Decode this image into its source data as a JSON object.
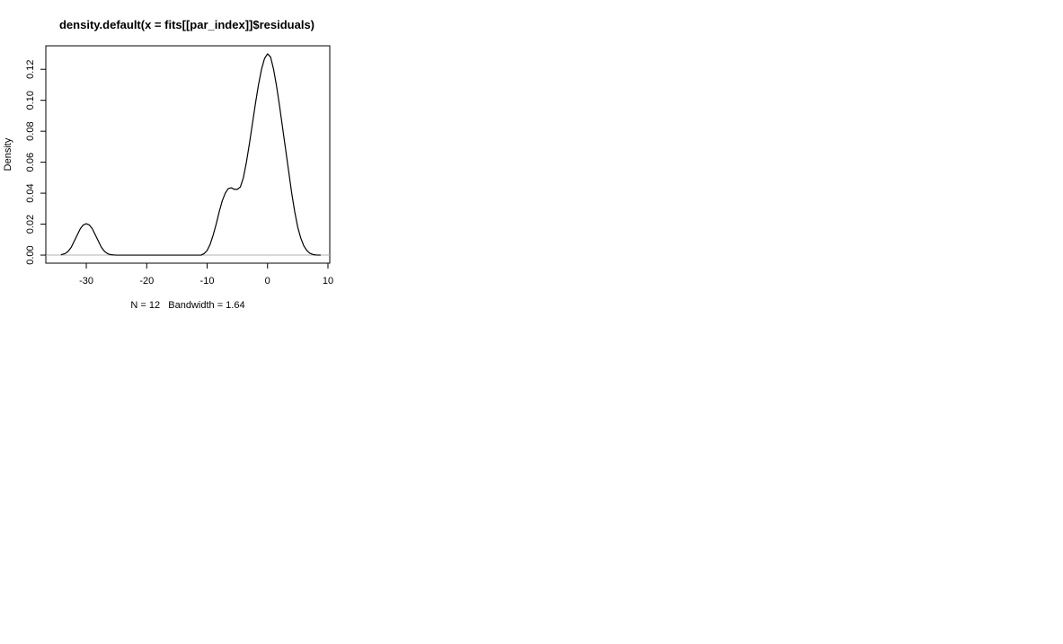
{
  "chart_data": {
    "type": "line",
    "title": "density.default(x = fits[[par_index]]$residuals)",
    "xlabel": "N = 12   Bandwidth = 1.64",
    "ylabel": "Density",
    "xlim": [
      -36.7,
      10.3
    ],
    "ylim": [
      -0.0052,
      0.1352
    ],
    "x_ticks": [
      -30,
      -20,
      -10,
      0,
      10
    ],
    "x_tick_labels": [
      "-30",
      "-20",
      "-10",
      "0",
      "10"
    ],
    "y_ticks": [
      0.0,
      0.02,
      0.04,
      0.06,
      0.08,
      0.1,
      0.12
    ],
    "y_tick_labels": [
      "0.00",
      "0.02",
      "0.04",
      "0.06",
      "0.08",
      "0.10",
      "0.12"
    ],
    "zero_line": true,
    "grid": false,
    "series": [
      {
        "x": [
          -34.2,
          -33.5,
          -33,
          -32.5,
          -32,
          -31.5,
          -31,
          -30.5,
          -30,
          -29.5,
          -29,
          -28.5,
          -28,
          -27.5,
          -27,
          -26.5,
          -26,
          -25.5,
          -25,
          -24,
          -20,
          -15,
          -11,
          -10.5,
          -10,
          -9.5,
          -9,
          -8.5,
          -8,
          -7.5,
          -7,
          -6.5,
          -6,
          -5.5,
          -5,
          -4.5,
          -4,
          -3.5,
          -3,
          -2.5,
          -2,
          -1.5,
          -1,
          -0.5,
          0,
          0.5,
          1,
          1.5,
          2,
          2.5,
          3,
          3.5,
          4,
          4.5,
          5,
          5.5,
          6,
          6.5,
          7,
          7.5,
          8,
          8.8
        ],
        "y": [
          0.0002,
          0.001,
          0.0025,
          0.005,
          0.009,
          0.013,
          0.017,
          0.0195,
          0.0203,
          0.0195,
          0.017,
          0.013,
          0.009,
          0.005,
          0.0025,
          0.001,
          0.0003,
          0.0001,
          0,
          0,
          0,
          0,
          0,
          0.001,
          0.003,
          0.007,
          0.013,
          0.02,
          0.028,
          0.035,
          0.04,
          0.043,
          0.0435,
          0.0425,
          0.0425,
          0.044,
          0.05,
          0.06,
          0.072,
          0.085,
          0.098,
          0.11,
          0.12,
          0.127,
          0.13,
          0.128,
          0.12,
          0.109,
          0.096,
          0.082,
          0.068,
          0.054,
          0.04,
          0.028,
          0.018,
          0.011,
          0.006,
          0.003,
          0.0012,
          0.0004,
          0.0001,
          0
        ]
      }
    ]
  }
}
